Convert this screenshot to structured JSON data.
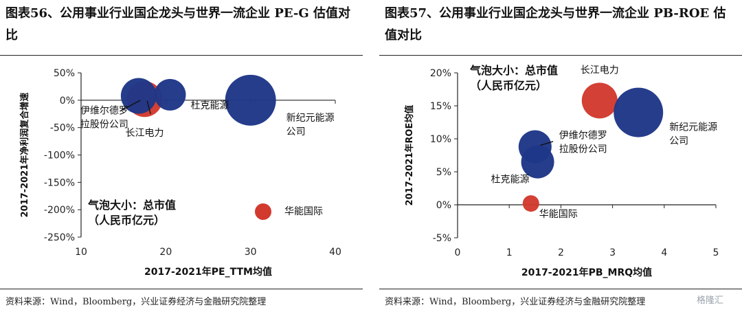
{
  "left_panel": {
    "title": "图表56、公用事业行业国企龙头与世界一流企业 PE-G 估值对比",
    "source": "资料来源：Wind，Bloomberg，兴业证券经济与金融研究院整理"
  },
  "right_panel": {
    "title": "图表57、公用事业行业国企龙头与世界一流企业 PB-ROE 估值对比",
    "source": "资料来源：Wind，Bloomberg，兴业证券经济与金融研究院整理"
  },
  "watermark": "格隆汇",
  "colors": {
    "navy": "#1f3788",
    "red": "#d23a2e",
    "axis": "#222222"
  },
  "chart_data": [
    {
      "type": "scatter",
      "xlabel": "2017-2021年PE_TTM均值",
      "ylabel": "2017-2021年净利润复合增速",
      "xlim": [
        10,
        40
      ],
      "ylim": [
        -250,
        50
      ],
      "xticks": [
        10,
        20,
        30,
        40
      ],
      "xtick_labels": [
        "10",
        "20",
        "30",
        "40"
      ],
      "yticks": [
        -250,
        -200,
        -150,
        -100,
        -50,
        0,
        50
      ],
      "ytick_labels": [
        "-250%",
        "-200%",
        "-150%",
        "-100%",
        "-50%",
        "0%",
        "50%"
      ],
      "grid": false,
      "size_note": [
        "气泡大小：总市值",
        "（人民币亿元）"
      ],
      "legend": {
        "label": "华能国际",
        "color": "#d23a2e"
      },
      "series": [
        {
          "name": "长江电力",
          "x": 17.5,
          "y": 2,
          "size": 0.85,
          "color": "#d23a2e",
          "label_lines": [
            "长江电力"
          ]
        },
        {
          "name": "伊维尔德罗拉股份公司",
          "x": 16.8,
          "y": 8,
          "size": 0.85,
          "color": "#1f3788",
          "label_lines": [
            "伊维尔德罗",
            "拉股份公司"
          ]
        },
        {
          "name": "杜克能源",
          "x": 20.5,
          "y": 10,
          "size": 0.75,
          "color": "#1f3788",
          "label_lines": [
            "杜克能源"
          ]
        },
        {
          "name": "新纪元能源公司",
          "x": 30,
          "y": 0,
          "size": 1.0,
          "color": "#1f3788",
          "label_lines": [
            "新纪元能源",
            "公司"
          ]
        }
      ]
    },
    {
      "type": "scatter",
      "xlabel": "2017-2021年PB_MRQ均值",
      "ylabel": "2017-2021年ROE均值",
      "xlim": [
        0,
        5
      ],
      "ylim": [
        -5,
        20
      ],
      "xticks": [
        0,
        1,
        2,
        3,
        4,
        5
      ],
      "xtick_labels": [
        "0",
        "1",
        "2",
        "3",
        "4",
        "5"
      ],
      "yticks": [
        -5,
        0,
        5,
        10,
        15,
        20
      ],
      "ytick_labels": [
        "-5%",
        "0%",
        "5%",
        "10%",
        "15%",
        "20%"
      ],
      "grid": false,
      "size_note": [
        "气泡大小：总市值",
        "（人民币亿元）"
      ],
      "series": [
        {
          "name": "长江电力",
          "x": 2.75,
          "y": 15.8,
          "size": 0.65,
          "color": "#d23a2e",
          "label_lines": [
            "长江电力"
          ]
        },
        {
          "name": "新纪元能源公司",
          "x": 3.5,
          "y": 14,
          "size": 1.0,
          "color": "#1f3788",
          "label_lines": [
            "新纪元能源",
            "公司"
          ]
        },
        {
          "name": "伊维尔德罗拉股份公司",
          "x": 1.5,
          "y": 8.8,
          "size": 0.65,
          "color": "#1f3788",
          "label_lines": [
            "伊维尔德罗",
            "拉股份公司"
          ]
        },
        {
          "name": "杜克能源",
          "x": 1.55,
          "y": 6.5,
          "size": 0.65,
          "color": "#1f3788",
          "label_lines": [
            "杜克能源"
          ]
        },
        {
          "name": "华能国际",
          "x": 1.42,
          "y": 0.2,
          "size": 0.3,
          "color": "#d23a2e",
          "label_lines": [
            "华能国际"
          ]
        }
      ]
    }
  ]
}
